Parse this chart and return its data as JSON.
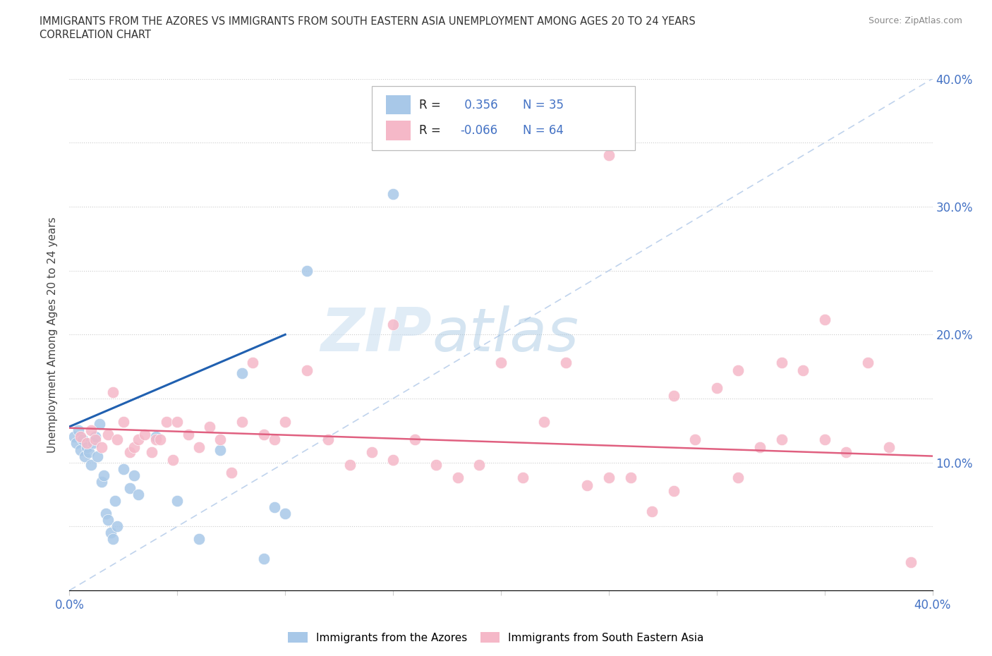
{
  "title_line1": "IMMIGRANTS FROM THE AZORES VS IMMIGRANTS FROM SOUTH EASTERN ASIA UNEMPLOYMENT AMONG AGES 20 TO 24 YEARS",
  "title_line2": "CORRELATION CHART",
  "source": "Source: ZipAtlas.com",
  "ylabel": "Unemployment Among Ages 20 to 24 years",
  "watermark_ZIP": "ZIP",
  "watermark_atlas": "atlas",
  "R_azores": 0.356,
  "N_azores": 35,
  "R_sea": -0.066,
  "N_sea": 64,
  "azores_color": "#a8c8e8",
  "sea_color": "#f5b8c8",
  "azores_line_color": "#2060b0",
  "sea_line_color": "#e06080",
  "dashed_line_color": "#b0c8e8",
  "xlim": [
    0.0,
    0.4
  ],
  "ylim": [
    0.0,
    0.4
  ],
  "xticks": [
    0.0,
    0.05,
    0.1,
    0.15,
    0.2,
    0.25,
    0.3,
    0.35,
    0.4
  ],
  "yticks": [
    0.0,
    0.05,
    0.1,
    0.15,
    0.2,
    0.25,
    0.3,
    0.35,
    0.4
  ],
  "azores_x": [
    0.002,
    0.003,
    0.004,
    0.005,
    0.006,
    0.007,
    0.008,
    0.009,
    0.01,
    0.011,
    0.012,
    0.013,
    0.014,
    0.015,
    0.016,
    0.017,
    0.018,
    0.019,
    0.02,
    0.021,
    0.022,
    0.025,
    0.028,
    0.03,
    0.032,
    0.04,
    0.05,
    0.06,
    0.07,
    0.08,
    0.09,
    0.095,
    0.1,
    0.11,
    0.15
  ],
  "azores_y": [
    0.12,
    0.115,
    0.125,
    0.11,
    0.118,
    0.105,
    0.112,
    0.108,
    0.098,
    0.115,
    0.12,
    0.105,
    0.13,
    0.085,
    0.09,
    0.06,
    0.055,
    0.045,
    0.04,
    0.07,
    0.05,
    0.095,
    0.08,
    0.09,
    0.075,
    0.12,
    0.07,
    0.04,
    0.11,
    0.17,
    0.025,
    0.065,
    0.06,
    0.25,
    0.31
  ],
  "sea_x": [
    0.005,
    0.008,
    0.01,
    0.012,
    0.015,
    0.018,
    0.02,
    0.022,
    0.025,
    0.028,
    0.03,
    0.032,
    0.035,
    0.038,
    0.04,
    0.042,
    0.045,
    0.048,
    0.05,
    0.055,
    0.06,
    0.065,
    0.07,
    0.075,
    0.08,
    0.085,
    0.09,
    0.095,
    0.1,
    0.11,
    0.12,
    0.13,
    0.14,
    0.15,
    0.16,
    0.17,
    0.18,
    0.19,
    0.2,
    0.21,
    0.22,
    0.23,
    0.24,
    0.25,
    0.26,
    0.27,
    0.28,
    0.29,
    0.3,
    0.31,
    0.32,
    0.33,
    0.34,
    0.35,
    0.36,
    0.37,
    0.38,
    0.39,
    0.25,
    0.35,
    0.28,
    0.31,
    0.15,
    0.33
  ],
  "sea_y": [
    0.12,
    0.115,
    0.125,
    0.118,
    0.112,
    0.122,
    0.155,
    0.118,
    0.132,
    0.108,
    0.112,
    0.118,
    0.122,
    0.108,
    0.118,
    0.118,
    0.132,
    0.102,
    0.132,
    0.122,
    0.112,
    0.128,
    0.118,
    0.092,
    0.132,
    0.178,
    0.122,
    0.118,
    0.132,
    0.172,
    0.118,
    0.098,
    0.108,
    0.102,
    0.118,
    0.098,
    0.088,
    0.098,
    0.178,
    0.088,
    0.132,
    0.178,
    0.082,
    0.088,
    0.088,
    0.062,
    0.078,
    0.118,
    0.158,
    0.088,
    0.112,
    0.118,
    0.172,
    0.118,
    0.108,
    0.178,
    0.112,
    0.022,
    0.34,
    0.212,
    0.152,
    0.172,
    0.208,
    0.178
  ],
  "azores_trend_x": [
    0.0,
    0.1
  ],
  "azores_trend_y": [
    0.128,
    0.2
  ],
  "sea_trend_x": [
    0.0,
    0.4
  ],
  "sea_trend_y": [
    0.127,
    0.105
  ]
}
